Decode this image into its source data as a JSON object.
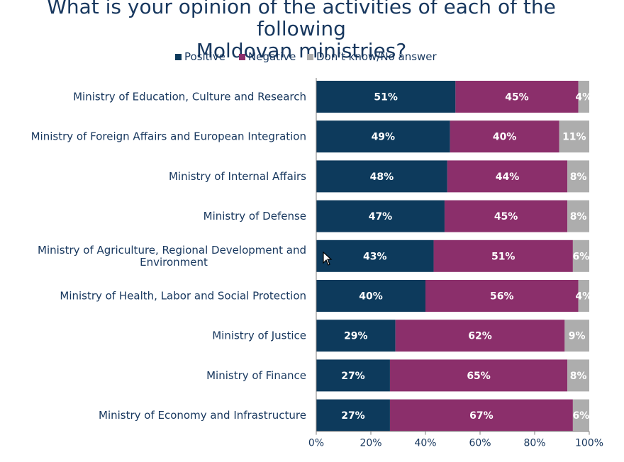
{
  "chart_data": {
    "type": "bar",
    "orientation": "horizontal",
    "stacked": true,
    "percent": true,
    "title": "What is your opinion of the activities of each of the following Moldovan ministries?",
    "title_lines": [
      "What is your opinion of the activities of each of the following",
      "Moldovan ministries?"
    ],
    "legend_position": "top",
    "categories": [
      [
        "Ministry of Education, Culture and Research"
      ],
      [
        "Ministry of Foreign Affairs and European Integration"
      ],
      [
        "Ministry of Internal Affairs"
      ],
      [
        "Ministry of Defense"
      ],
      [
        "Ministry of Agriculture, Regional Development and",
        "Environment"
      ],
      [
        "Ministry of Health, Labor and Social Protection"
      ],
      [
        "Ministry of Justice"
      ],
      [
        "Ministry of Finance"
      ],
      [
        "Ministry of Economy and Infrastructure"
      ]
    ],
    "series": [
      {
        "name": "Positive",
        "color": "#0d3a5c",
        "values": [
          51,
          49,
          48,
          47,
          43,
          40,
          29,
          27,
          27
        ]
      },
      {
        "name": "Negative",
        "color": "#8b2f6b",
        "values": [
          45,
          40,
          44,
          45,
          51,
          56,
          62,
          65,
          67
        ]
      },
      {
        "name": "Don’t know/No answer",
        "color": "#adadad",
        "values": [
          4,
          11,
          8,
          8,
          6,
          4,
          9,
          8,
          6
        ]
      }
    ],
    "xlim": [
      0,
      100
    ],
    "xticks": [
      "0%",
      "20%",
      "40%",
      "60%",
      "80%",
      "100%"
    ],
    "value_suffix": "%",
    "grid": false
  }
}
